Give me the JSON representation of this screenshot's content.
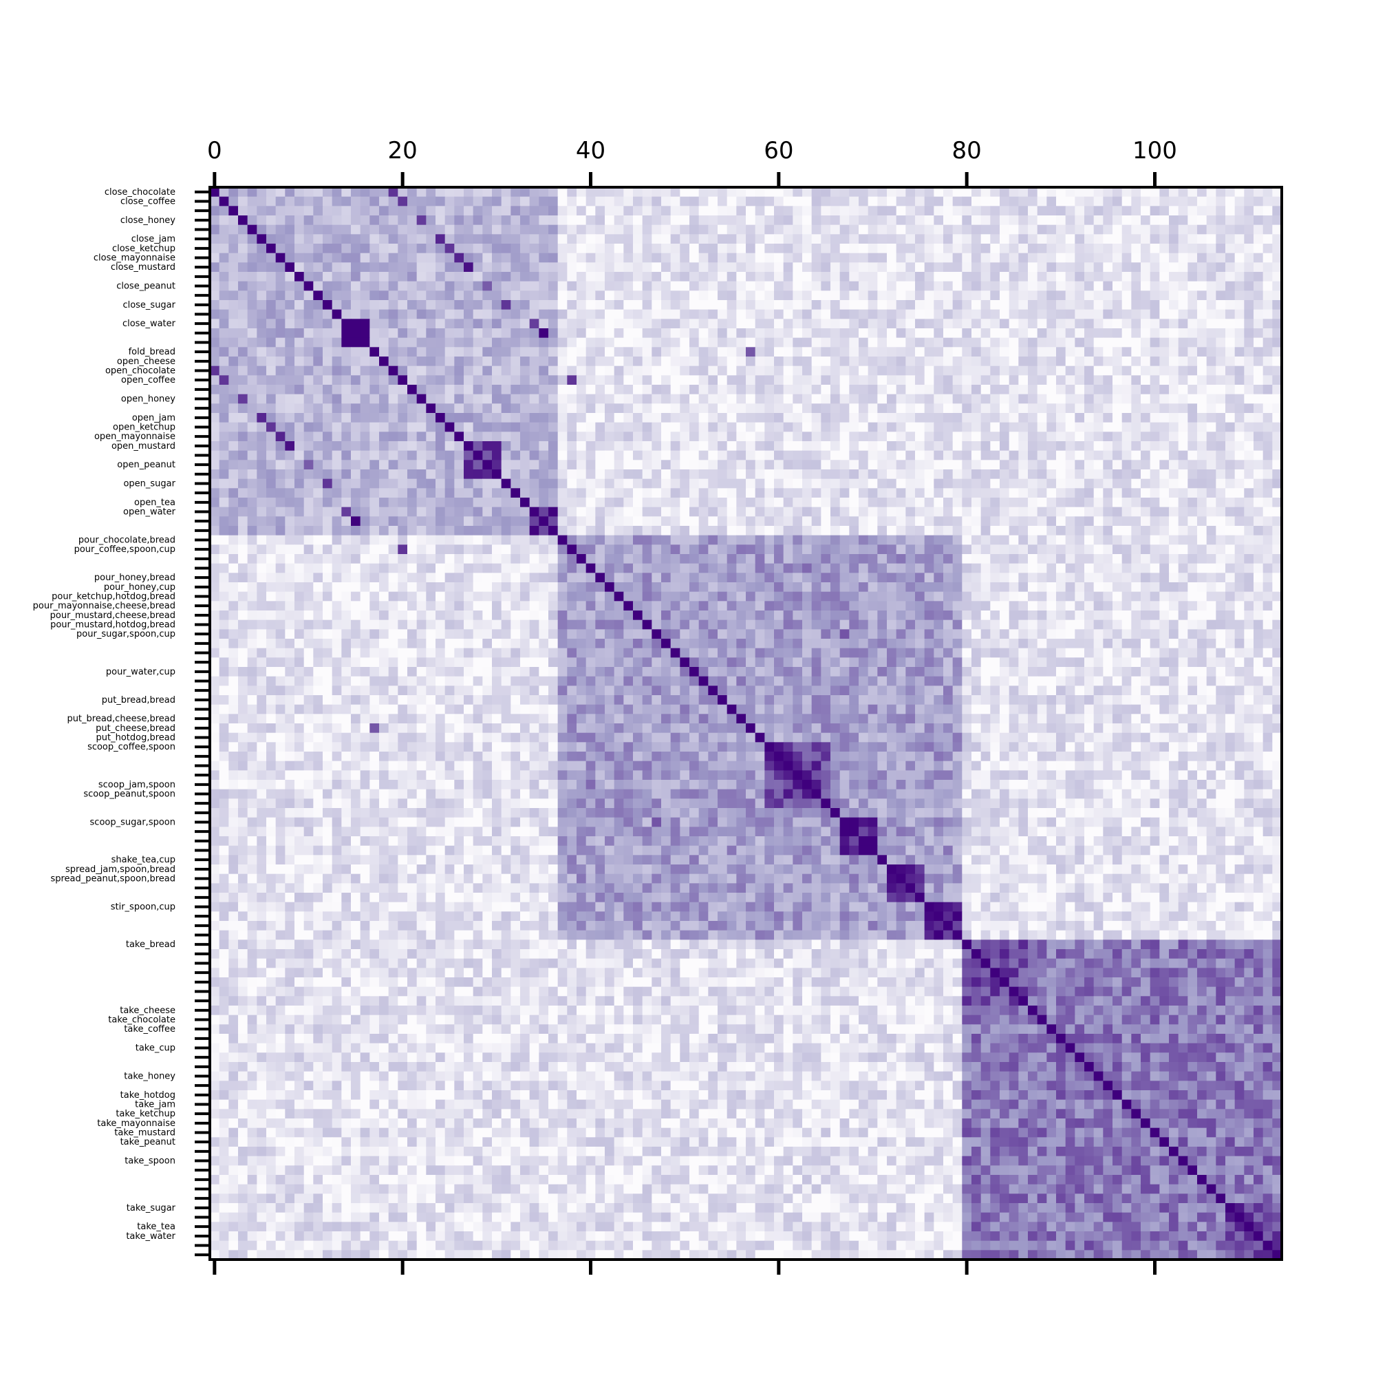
{
  "chart_data": {
    "type": "heatmap",
    "title": "",
    "xlabel": "",
    "ylabel": "",
    "n_cells": 114,
    "xlim": [
      -0.5,
      113.5
    ],
    "ylim": [
      -0.5,
      113.5
    ],
    "x_ticks": [
      0,
      20,
      40,
      60,
      80,
      100
    ],
    "x_tick_labels": [
      "0",
      "20",
      "40",
      "60",
      "80",
      "100"
    ],
    "x_axis_position": "top",
    "y_labels": [
      {
        "index": 0,
        "label": "close_chocolate"
      },
      {
        "index": 1,
        "label": "close_coffee"
      },
      {
        "index": 3,
        "label": "close_honey"
      },
      {
        "index": 5,
        "label": "close_jam"
      },
      {
        "index": 6,
        "label": "close_ketchup"
      },
      {
        "index": 7,
        "label": "close_mayonnaise"
      },
      {
        "index": 8,
        "label": "close_mustard"
      },
      {
        "index": 10,
        "label": "close_peanut"
      },
      {
        "index": 12,
        "label": "close_sugar"
      },
      {
        "index": 14,
        "label": "close_water"
      },
      {
        "index": 17,
        "label": "fold_bread"
      },
      {
        "index": 18,
        "label": "open_cheese"
      },
      {
        "index": 19,
        "label": "open_chocolate"
      },
      {
        "index": 20,
        "label": "open_coffee"
      },
      {
        "index": 22,
        "label": "open_honey"
      },
      {
        "index": 24,
        "label": "open_jam"
      },
      {
        "index": 25,
        "label": "open_ketchup"
      },
      {
        "index": 26,
        "label": "open_mayonnaise"
      },
      {
        "index": 27,
        "label": "open_mustard"
      },
      {
        "index": 29,
        "label": "open_peanut"
      },
      {
        "index": 31,
        "label": "open_sugar"
      },
      {
        "index": 33,
        "label": "open_tea"
      },
      {
        "index": 34,
        "label": "open_water"
      },
      {
        "index": 37,
        "label": "pour_chocolate,bread"
      },
      {
        "index": 38,
        "label": "pour_coffee,spoon,cup"
      },
      {
        "index": 41,
        "label": "pour_honey,bread"
      },
      {
        "index": 42,
        "label": "pour_honey,cup"
      },
      {
        "index": 43,
        "label": "pour_ketchup,hotdog,bread"
      },
      {
        "index": 44,
        "label": "pour_mayonnaise,cheese,bread"
      },
      {
        "index": 45,
        "label": "pour_mustard,cheese,bread"
      },
      {
        "index": 46,
        "label": "pour_mustard,hotdog,bread"
      },
      {
        "index": 47,
        "label": "pour_sugar,spoon,cup"
      },
      {
        "index": 51,
        "label": "pour_water,cup"
      },
      {
        "index": 54,
        "label": "put_bread,bread"
      },
      {
        "index": 56,
        "label": "put_bread,cheese,bread"
      },
      {
        "index": 57,
        "label": "put_cheese,bread"
      },
      {
        "index": 58,
        "label": "put_hotdog,bread"
      },
      {
        "index": 59,
        "label": "scoop_coffee,spoon"
      },
      {
        "index": 63,
        "label": "scoop_jam,spoon"
      },
      {
        "index": 64,
        "label": "scoop_peanut,spoon"
      },
      {
        "index": 67,
        "label": "scoop_sugar,spoon"
      },
      {
        "index": 71,
        "label": "shake_tea,cup"
      },
      {
        "index": 72,
        "label": "spread_jam,spoon,bread"
      },
      {
        "index": 73,
        "label": "spread_peanut,spoon,bread"
      },
      {
        "index": 76,
        "label": "stir_spoon,cup"
      },
      {
        "index": 80,
        "label": "take_bread"
      },
      {
        "index": 87,
        "label": "take_cheese"
      },
      {
        "index": 88,
        "label": "take_chocolate"
      },
      {
        "index": 89,
        "label": "take_coffee"
      },
      {
        "index": 91,
        "label": "take_cup"
      },
      {
        "index": 94,
        "label": "take_honey"
      },
      {
        "index": 96,
        "label": "take_hotdog"
      },
      {
        "index": 97,
        "label": "take_jam"
      },
      {
        "index": 98,
        "label": "take_ketchup"
      },
      {
        "index": 99,
        "label": "take_mayonnaise"
      },
      {
        "index": 100,
        "label": "take_mustard"
      },
      {
        "index": 101,
        "label": "take_peanut"
      },
      {
        "index": 103,
        "label": "take_spoon"
      },
      {
        "index": 108,
        "label": "take_sugar"
      },
      {
        "index": 110,
        "label": "take_tea"
      },
      {
        "index": 111,
        "label": "take_water"
      }
    ],
    "value_range": [
      0,
      1
    ],
    "colormap": {
      "low": "#fcfbfd",
      "mid": "#9e9ac8",
      "high": "#3f007d"
    },
    "diagonal_value": 1.0,
    "blocks": [
      {
        "start": 0,
        "end": 36,
        "value": 0.35
      },
      {
        "start": 37,
        "end": 79,
        "value": 0.45
      },
      {
        "start": 80,
        "end": 113,
        "value": 0.6
      },
      {
        "start": 14,
        "end": 16,
        "value": 0.95
      },
      {
        "start": 27,
        "end": 30,
        "value": 0.85
      },
      {
        "start": 34,
        "end": 36,
        "value": 0.92
      },
      {
        "start": 59,
        "end": 65,
        "value": 0.8
      },
      {
        "start": 67,
        "end": 70,
        "value": 0.9
      },
      {
        "start": 72,
        "end": 75,
        "value": 0.9
      },
      {
        "start": 76,
        "end": 79,
        "value": 0.9
      },
      {
        "start": 80,
        "end": 86,
        "value": 0.75
      },
      {
        "start": 108,
        "end": 113,
        "value": 0.8
      }
    ],
    "pairs": [
      {
        "i": 0,
        "j": 19,
        "value": 0.85
      },
      {
        "i": 1,
        "j": 20,
        "value": 0.85
      },
      {
        "i": 3,
        "j": 22,
        "value": 0.8
      },
      {
        "i": 5,
        "j": 24,
        "value": 0.8
      },
      {
        "i": 6,
        "j": 25,
        "value": 0.8
      },
      {
        "i": 7,
        "j": 26,
        "value": 0.8
      },
      {
        "i": 8,
        "j": 27,
        "value": 0.8
      },
      {
        "i": 10,
        "j": 29,
        "value": 0.8
      },
      {
        "i": 12,
        "j": 31,
        "value": 0.8
      },
      {
        "i": 14,
        "j": 34,
        "value": 0.85
      },
      {
        "i": 15,
        "j": 35,
        "value": 0.85
      },
      {
        "i": 20,
        "j": 38,
        "value": 0.7
      },
      {
        "i": 38,
        "j": 60,
        "value": 0.75
      },
      {
        "i": 40,
        "j": 63,
        "value": 0.7
      },
      {
        "i": 47,
        "j": 67,
        "value": 0.7
      },
      {
        "i": 49,
        "j": 68,
        "value": 0.7
      },
      {
        "i": 57,
        "j": 17,
        "value": 0.7
      }
    ]
  }
}
